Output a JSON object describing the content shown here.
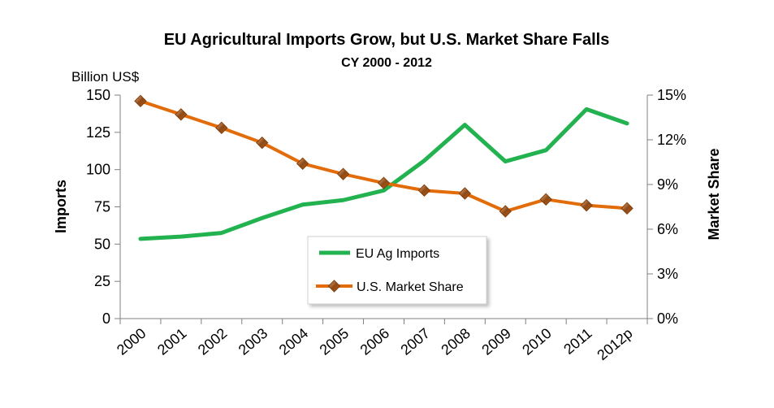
{
  "chart_data": {
    "type": "line",
    "title": "EU Agricultural Imports Grow, but U.S. Market Share Falls",
    "subtitle": "CY 2000 - 2012",
    "y_unit": "Billion US$",
    "ylabel_left": "Imports",
    "ylabel_right": "Market Share",
    "categories": [
      "2000",
      "2001",
      "2002",
      "2003",
      "2004",
      "2005",
      "2006",
      "2007",
      "2008",
      "2009",
      "2010",
      "2011",
      "2012p"
    ],
    "y_left_lim": [
      0,
      150
    ],
    "y_left_ticks": [
      "0",
      "25",
      "50",
      "75",
      "100",
      "125",
      "150"
    ],
    "y_right_lim": [
      0,
      15
    ],
    "y_right_ticks": [
      "0%",
      "3%",
      "6%",
      "9%",
      "12%",
      "15%"
    ],
    "grid": false,
    "legend_position": "center-bottom",
    "series": [
      {
        "name": "EU Ag Imports",
        "axis": "left",
        "color": "#22b350",
        "marker": "none",
        "values": [
          53.5,
          55,
          57.5,
          67.5,
          76.5,
          79.5,
          86,
          106,
          130,
          105.5,
          113,
          140.5,
          131
        ]
      },
      {
        "name": "U.S. Market Share",
        "axis": "right",
        "color": "#e36c0a",
        "marker": "diamond",
        "values": [
          14.6,
          13.7,
          12.8,
          11.8,
          10.4,
          9.7,
          9.1,
          8.6,
          8.4,
          7.2,
          8.0,
          7.6,
          7.4
        ]
      }
    ]
  }
}
